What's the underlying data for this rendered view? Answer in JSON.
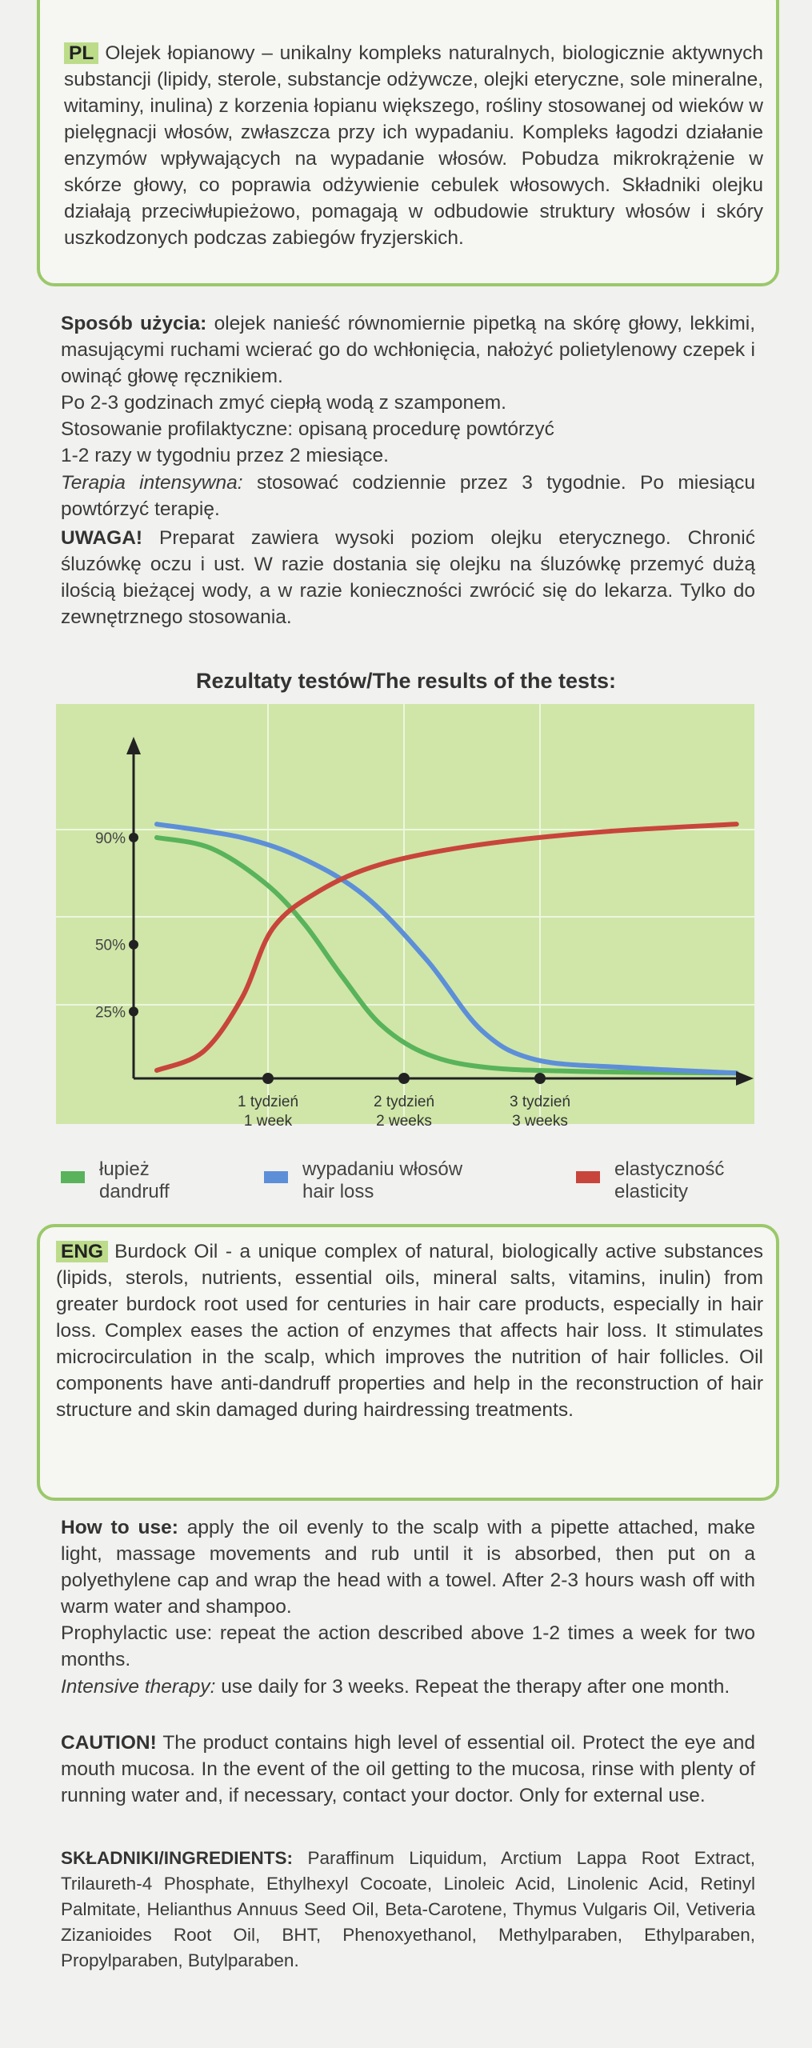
{
  "pl": {
    "tag": "PL",
    "text": "Olejek łopianowy – unikalny kompleks naturalnych, biologicznie aktywnych substancji (lipidy, sterole, substancje odżywcze, olejki eteryczne, sole mineralne, witaminy, inulina)  z korzenia łopianu większego, rośliny stosowanej od wieków w pielęgnacji włosów, zwłaszcza przy ich wypadaniu. Kompleks łagodzi działanie enzymów wpływających na wypadanie włosów. Pobudza mikrokrążenie w skórze głowy, co poprawia odżywienie cebulek włosowych. Składniki olejku działają przeciwłupieżowo, pomagają w odbudowie struktury włosów i skóry uszkodzonych podczas zabiegów fryzjerskich."
  },
  "pl_usage": {
    "label": "Sposób użycia:",
    "text1": " olejek nanieść równomiernie pipetką na skórę głowy, lekkimi, masującymi ruchami wcierać go do wchłonięcia, nałożyć polietylenowy czepek i owinąć głowę ręcznikiem.",
    "text2": "Po 2-3 godzinach zmyć ciepłą wodą z szamponem.",
    "text3": "Stosowanie profilaktyczne: opisaną procedurę powtórzyć",
    "text4": "1-2 razy w tygodniu przez 2 miesiące."
  },
  "pl_intensive": {
    "label": "Terapia intensywna:",
    "text": " stosować codziennie przez 3 tygodnie. Po miesiącu powtórzyć terapię."
  },
  "pl_caution": {
    "label": "UWAGA!",
    "text": " Preparat zawiera wysoki poziom olejku eterycznego. Chronić śluzówkę oczu i ust. W razie dostania się olejku na śluzówkę przemyć dużą ilością bieżącej wody, a w razie konieczności zwrócić się do lekarza. Tylko do zewnętrznego stosowania."
  },
  "chart_title": "Rezultaty testów/The results of the tests:",
  "chart_data": {
    "type": "line",
    "title": "Rezultaty testów/The results of the tests:",
    "xlabel": "",
    "ylabel": "",
    "x_ticks": [
      {
        "x": 1,
        "line1": "1 tydzień",
        "line2": "1 week"
      },
      {
        "x": 2,
        "line1": "2 tydzień",
        "line2": "2 weeks"
      },
      {
        "x": 3,
        "line1": "3 tydzień",
        "line2": "3 weeks"
      }
    ],
    "y_ticks": [
      {
        "v": 25,
        "label": "25%"
      },
      {
        "v": 50,
        "label": "50%"
      },
      {
        "v": 90,
        "label": "90%"
      }
    ],
    "xlim": [
      0,
      4
    ],
    "ylim": [
      0,
      110
    ],
    "grid": true,
    "legend": "bottom",
    "series": [
      {
        "name": "łupież / dandruff",
        "color": "#59b35a",
        "points": [
          [
            0.15,
            90
          ],
          [
            0.5,
            86
          ],
          [
            0.85,
            73
          ],
          [
            1.1,
            58
          ],
          [
            1.35,
            38
          ],
          [
            1.6,
            20
          ],
          [
            1.9,
            9
          ],
          [
            2.3,
            4
          ],
          [
            3.0,
            2.5
          ],
          [
            3.9,
            2
          ]
        ]
      },
      {
        "name": "wypadaniu włosów / hair loss",
        "color": "#5d8fd8",
        "points": [
          [
            0.15,
            95
          ],
          [
            0.7,
            90
          ],
          [
            1.1,
            82
          ],
          [
            1.5,
            68
          ],
          [
            1.9,
            44
          ],
          [
            2.25,
            18
          ],
          [
            2.6,
            7
          ],
          [
            3.2,
            4
          ],
          [
            3.9,
            2
          ]
        ]
      },
      {
        "name": "elastyczność / elasticity",
        "color": "#c8453b",
        "points": [
          [
            0.15,
            3
          ],
          [
            0.45,
            10
          ],
          [
            0.7,
            30
          ],
          [
            0.9,
            56
          ],
          [
            1.2,
            70
          ],
          [
            1.6,
            80
          ],
          [
            2.2,
            87
          ],
          [
            3.0,
            92
          ],
          [
            3.9,
            95
          ]
        ]
      }
    ]
  },
  "legend": [
    {
      "line1": "łupież",
      "line2": "dandruff",
      "color": "#59b35a"
    },
    {
      "line1": "wypadaniu włosów",
      "line2": "hair loss",
      "color": "#5d8fd8"
    },
    {
      "line1": "elastyczność",
      "line2": "elasticity",
      "color": "#c8453b"
    }
  ],
  "eng": {
    "tag": "ENG",
    "text": "Burdock Oil - a unique complex of natural, biologically active substances (lipids, sterols, nutrients, essential oils, mineral salts, vitamins, inulin) from greater burdock root used for centuries in hair care products, especially in hair loss. Complex eases the action of enzymes that affects hair loss. It stimulates microcirculation in the scalp, which improves the nutrition of hair follicles. Oil components have anti-dandruff properties and help in the reconstruction of hair structure and skin damaged during hairdressing treatments."
  },
  "eng_usage": {
    "label": "How to use:",
    "text": " apply the oil evenly to the scalp with a pipette attached, make light, massage movements and rub until it is absorbed, then put on a polyethylene cap and wrap the head with a towel. After 2-3 hours wash off with warm water and shampoo.",
    "text2": "Prophylactic use: repeat the action described above 1-2 times a week for two months."
  },
  "eng_intensive": {
    "label": "Intensive therapy:",
    "text": " use daily for 3 weeks. Repeat the therapy after one month."
  },
  "eng_caution": {
    "label": "CAUTION!",
    "text": " The product contains high level of essential oil. Protect the eye and mouth mucosa. In the event of the oil getting to the mucosa, rinse with plenty of running water and, if necessary, contact your doctor. Only for external use."
  },
  "ingredients": {
    "label": "SKŁADNIKI/INGREDIENTS:",
    "text": " Paraffinum Liquidum, Arctium Lappa Root Extract, Trilaureth-4 Phosphate, Ethylhexyl Cocoate, Linoleic Acid, Linolenic Acid, Retinyl Palmitate, Helianthus Annuus Seed Oil, Beta-Carotene, Thymus Vulgaris Oil, Vetiveria Zizanioides Root Oil, BHT, Phenoxyethanol, Methylparaben, Ethylparaben, Propylparaben, Butylparaben."
  }
}
